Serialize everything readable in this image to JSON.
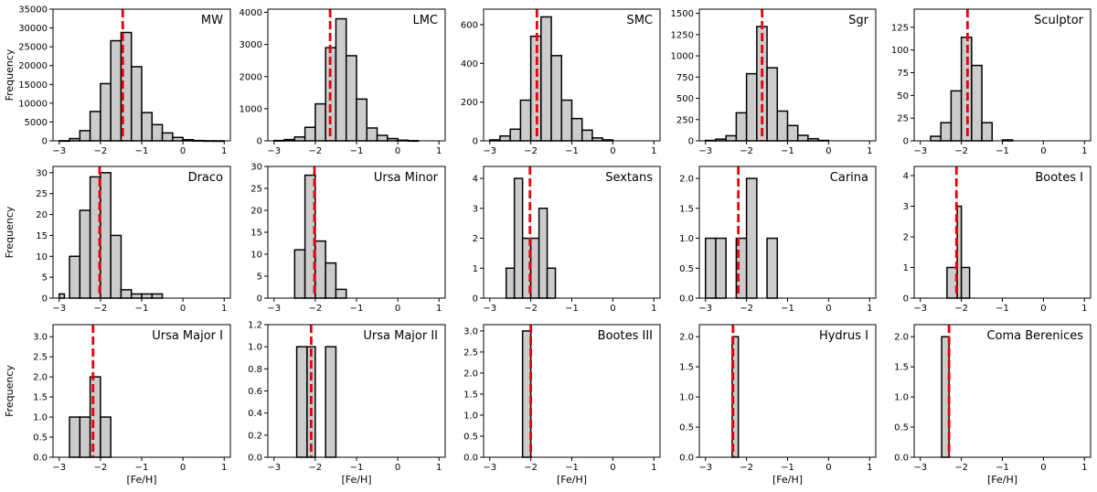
{
  "chart_data": {
    "type": "bar",
    "description_ylabel": "Frequency",
    "xlabel": "[Fe/H]",
    "colors": {
      "bar_fill": "#cccccc",
      "bar_edge": "#000000",
      "median_line": "#e8000b"
    },
    "panels": [
      {
        "title": "MW",
        "xlim": [
          -3.15,
          1.15
        ],
        "ylim": [
          0,
          35000
        ],
        "yticks": [
          0,
          5000,
          10000,
          15000,
          20000,
          25000,
          30000,
          35000
        ],
        "xticks": [
          -3,
          -2,
          -1,
          0,
          1
        ],
        "median": -1.46,
        "bins": [
          [
            -3.0,
            -2.75,
            30
          ],
          [
            -2.75,
            -2.5,
            600
          ],
          [
            -2.5,
            -2.25,
            2700
          ],
          [
            -2.25,
            -2.0,
            7800
          ],
          [
            -2.0,
            -1.75,
            15200
          ],
          [
            -1.75,
            -1.5,
            26600
          ],
          [
            -1.5,
            -1.25,
            28800
          ],
          [
            -1.25,
            -1.0,
            19700
          ],
          [
            -1.0,
            -0.75,
            7500
          ],
          [
            -0.75,
            -0.5,
            4300
          ],
          [
            -0.5,
            -0.25,
            2100
          ],
          [
            -0.25,
            0.0,
            900
          ],
          [
            0.0,
            0.25,
            300
          ],
          [
            0.25,
            0.5,
            80
          ],
          [
            0.5,
            0.75,
            20
          ],
          [
            0.75,
            1.0,
            5
          ]
        ]
      },
      {
        "title": "LMC",
        "xlim": [
          -3.15,
          1.15
        ],
        "ylim": [
          0,
          4100
        ],
        "yticks": [
          0,
          1000,
          2000,
          3000,
          4000
        ],
        "xticks": [
          -3,
          -2,
          -1,
          0,
          1
        ],
        "median": -1.64,
        "bins": [
          [
            -3.0,
            -2.75,
            10
          ],
          [
            -2.75,
            -2.5,
            40
          ],
          [
            -2.5,
            -2.25,
            120
          ],
          [
            -2.25,
            -2.0,
            420
          ],
          [
            -2.0,
            -1.75,
            1150
          ],
          [
            -1.75,
            -1.5,
            2900
          ],
          [
            -1.5,
            -1.25,
            3800
          ],
          [
            -1.25,
            -1.0,
            2650
          ],
          [
            -1.0,
            -0.75,
            1300
          ],
          [
            -0.75,
            -0.5,
            400
          ],
          [
            -0.5,
            -0.25,
            170
          ],
          [
            -0.25,
            0.0,
            70
          ],
          [
            0.0,
            0.25,
            20
          ],
          [
            0.25,
            0.5,
            5
          ]
        ]
      },
      {
        "title": "SMC",
        "xlim": [
          -3.15,
          1.15
        ],
        "ylim": [
          0,
          680
        ],
        "yticks": [
          0,
          200,
          400,
          600
        ],
        "xticks": [
          -3,
          -2,
          -1,
          0,
          1
        ],
        "median": -1.85,
        "bins": [
          [
            -3.0,
            -2.75,
            5
          ],
          [
            -2.75,
            -2.5,
            25
          ],
          [
            -2.5,
            -2.25,
            60
          ],
          [
            -2.25,
            -2.0,
            210
          ],
          [
            -2.0,
            -1.75,
            540
          ],
          [
            -1.75,
            -1.5,
            640
          ],
          [
            -1.5,
            -1.25,
            440
          ],
          [
            -1.25,
            -1.0,
            210
          ],
          [
            -1.0,
            -0.75,
            115
          ],
          [
            -0.75,
            -0.5,
            55
          ],
          [
            -0.5,
            -0.25,
            15
          ],
          [
            -0.25,
            0.0,
            5
          ]
        ]
      },
      {
        "title": "Sgr",
        "xlim": [
          -3.15,
          1.15
        ],
        "ylim": [
          0,
          1550
        ],
        "yticks": [
          0,
          250,
          500,
          750,
          1000,
          1250,
          1500
        ],
        "xticks": [
          -3,
          -2,
          -1,
          0,
          1
        ],
        "median": -1.62,
        "bins": [
          [
            -3.0,
            -2.75,
            5
          ],
          [
            -2.75,
            -2.5,
            20
          ],
          [
            -2.5,
            -2.25,
            60
          ],
          [
            -2.25,
            -2.0,
            330
          ],
          [
            -2.0,
            -1.75,
            790
          ],
          [
            -1.75,
            -1.5,
            1345
          ],
          [
            -1.5,
            -1.25,
            860
          ],
          [
            -1.25,
            -1.0,
            350
          ],
          [
            -1.0,
            -0.75,
            180
          ],
          [
            -0.75,
            -0.5,
            65
          ],
          [
            -0.5,
            -0.25,
            25
          ],
          [
            -0.25,
            0.0,
            5
          ]
        ]
      },
      {
        "title": "Sculptor",
        "xlim": [
          -3.15,
          1.15
        ],
        "ylim": [
          0,
          145
        ],
        "yticks": [
          0,
          25,
          50,
          75,
          100,
          125
        ],
        "xticks": [
          -3,
          -2,
          -1,
          0,
          1
        ],
        "median": -1.85,
        "bins": [
          [
            -2.75,
            -2.5,
            5
          ],
          [
            -2.5,
            -2.25,
            20
          ],
          [
            -2.25,
            -2.0,
            55
          ],
          [
            -2.0,
            -1.75,
            114
          ],
          [
            -1.75,
            -1.5,
            83
          ],
          [
            -1.5,
            -1.25,
            20
          ],
          [
            -1.0,
            -0.75,
            1
          ]
        ]
      },
      {
        "title": "Draco",
        "xlim": [
          -3.15,
          1.15
        ],
        "ylim": [
          0,
          31.5
        ],
        "yticks": [
          0,
          5,
          10,
          15,
          20,
          25,
          30
        ],
        "xticks": [
          -3,
          -2,
          -1,
          0,
          1
        ],
        "median": -2.02,
        "bins": [
          [
            -3.0,
            -2.875,
            1
          ],
          [
            -2.875,
            -2.5,
            0
          ],
          [
            -2.75,
            -2.5,
            10
          ],
          [
            -2.5,
            -2.25,
            21
          ],
          [
            -2.25,
            -2.0,
            29
          ],
          [
            -2.0,
            -1.75,
            30
          ],
          [
            -1.75,
            -1.5,
            15
          ],
          [
            -1.5,
            -1.25,
            2
          ],
          [
            -1.25,
            -1.0,
            1
          ],
          [
            -1.0,
            -0.75,
            1
          ],
          [
            -0.75,
            -0.5,
            1
          ]
        ]
      },
      {
        "title": "Ursa Minor",
        "xlim": [
          -3.15,
          1.15
        ],
        "ylim": [
          0,
          30
        ],
        "yticks": [
          0,
          5,
          10,
          15,
          20,
          25,
          30
        ],
        "xticks": [
          -3,
          -2,
          -1,
          0,
          1
        ],
        "median": -2.02,
        "bins": [
          [
            -2.5,
            -2.25,
            11
          ],
          [
            -2.25,
            -2.0,
            28
          ],
          [
            -2.0,
            -1.75,
            13
          ],
          [
            -1.75,
            -1.5,
            8
          ],
          [
            -1.5,
            -1.25,
            2
          ]
        ]
      },
      {
        "title": "Sextans",
        "xlim": [
          -3.15,
          1.15
        ],
        "ylim": [
          0,
          4.4
        ],
        "yticks": [
          0,
          1,
          2,
          3,
          4
        ],
        "xticks": [
          -3,
          -2,
          -1,
          0,
          1
        ],
        "median": -2.02,
        "bins": [
          [
            -2.6,
            -2.4,
            1
          ],
          [
            -2.4,
            -2.2,
            4
          ],
          [
            -2.2,
            -2.0,
            2
          ],
          [
            -2.0,
            -1.8,
            2
          ],
          [
            -1.8,
            -1.6,
            3
          ],
          [
            -1.6,
            -1.4,
            1
          ]
        ]
      },
      {
        "title": "Carina",
        "xlim": [
          -3.15,
          1.15
        ],
        "ylim": [
          0,
          2.2
        ],
        "yticks": [
          0,
          0.5,
          1.0,
          1.5,
          2.0
        ],
        "ytick_labels": [
          "0.0",
          "0.5",
          "1.0",
          "1.5",
          "2.0"
        ],
        "xticks": [
          -3,
          -2,
          -1,
          0,
          1
        ],
        "median": -2.2,
        "bins": [
          [
            -3.0,
            -2.75,
            1
          ],
          [
            -2.75,
            -2.5,
            1
          ],
          [
            -2.25,
            -2.0,
            1
          ],
          [
            -2.0,
            -1.75,
            2
          ],
          [
            -1.5,
            -1.25,
            1
          ]
        ]
      },
      {
        "title": "Bootes I",
        "xlim": [
          -3.15,
          1.15
        ],
        "ylim": [
          0,
          4.3
        ],
        "yticks": [
          0,
          1,
          2,
          3,
          4
        ],
        "xticks": [
          -3,
          -2,
          -1,
          0,
          1
        ],
        "median": -2.12,
        "bins": [
          [
            -2.35,
            -2.1,
            1
          ],
          [
            -2.1,
            -2.0,
            3
          ],
          [
            -2.0,
            -1.8,
            1
          ]
        ]
      },
      {
        "title": "Ursa Major I",
        "xlim": [
          -3.15,
          1.15
        ],
        "ylim": [
          0,
          3.3
        ],
        "yticks": [
          0,
          0.5,
          1.0,
          1.5,
          2.0,
          2.5,
          3.0
        ],
        "ytick_labels": [
          "0.0",
          "0.5",
          "1.0",
          "1.5",
          "2.0",
          "2.5",
          "3.0"
        ],
        "xticks": [
          -3,
          -2,
          -1,
          0,
          1
        ],
        "median": -2.18,
        "bins": [
          [
            -2.75,
            -2.5,
            1
          ],
          [
            -2.5,
            -2.25,
            1
          ],
          [
            -2.25,
            -2.0,
            2
          ],
          [
            -2.0,
            -1.75,
            1
          ]
        ]
      },
      {
        "title": "Ursa Major II",
        "xlim": [
          -3.15,
          1.15
        ],
        "ylim": [
          0,
          1.2
        ],
        "yticks": [
          0,
          0.2,
          0.4,
          0.6,
          0.8,
          1.0,
          1.2
        ],
        "ytick_labels": [
          "0.0",
          "0.2",
          "0.4",
          "0.6",
          "0.8",
          "1.0",
          "1.2"
        ],
        "xticks": [
          -3,
          -2,
          -1,
          0,
          1
        ],
        "median": -2.1,
        "bins": [
          [
            -2.45,
            -2.2,
            1
          ],
          [
            -2.2,
            -2.0,
            1
          ],
          [
            -1.75,
            -1.5,
            1
          ]
        ]
      },
      {
        "title": "Bootes III",
        "xlim": [
          -3.15,
          1.15
        ],
        "ylim": [
          0,
          3.15
        ],
        "yticks": [
          0,
          0.5,
          1.0,
          1.5,
          2.0,
          2.5,
          3.0
        ],
        "ytick_labels": [
          "0.0",
          "0.5",
          "1.0",
          "1.5",
          "2.0",
          "2.5",
          "3.0"
        ],
        "xticks": [
          -3,
          -2,
          -1,
          0,
          1
        ],
        "median": -2.0,
        "bins": [
          [
            -2.2,
            -2.0,
            3
          ]
        ]
      },
      {
        "title": "Hydrus I",
        "xlim": [
          -3.15,
          1.15
        ],
        "ylim": [
          0,
          2.2
        ],
        "yticks": [
          0,
          0.5,
          1.0,
          1.5,
          2.0
        ],
        "ytick_labels": [
          "0.0",
          "0.5",
          "1.0",
          "1.5",
          "2.0"
        ],
        "xticks": [
          -3,
          -2,
          -1,
          0,
          1
        ],
        "median": -2.33,
        "bins": [
          [
            -2.35,
            -2.2,
            2
          ]
        ]
      },
      {
        "title": "Coma Berenices",
        "xlim": [
          -3.15,
          1.15
        ],
        "ylim": [
          0,
          2.2
        ],
        "yticks": [
          0,
          0.5,
          1.0,
          1.5,
          2.0
        ],
        "ytick_labels": [
          "0.0",
          "0.5",
          "1.0",
          "1.5",
          "2.0"
        ],
        "xticks": [
          -3,
          -2,
          -1,
          0,
          1
        ],
        "median": -2.3,
        "bins": [
          [
            -2.48,
            -2.3,
            2
          ]
        ]
      }
    ]
  }
}
